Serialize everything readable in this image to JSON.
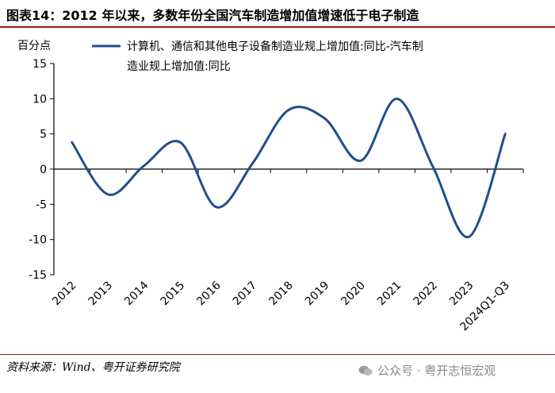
{
  "header": {
    "title": "图表14：2012 年以来，多数年份全国汽车制造增加值增速低于电子制造"
  },
  "footer": {
    "source": "资料来源：Wind、粤开证券研究院",
    "watermark": "公众号 · 粤开志恒宏观"
  },
  "colors": {
    "line": "#1f4e8c",
    "accent_rule": "#9b1c1c",
    "axis": "#000000"
  },
  "chart_data": {
    "type": "line",
    "title": "",
    "ylabel": "百分点",
    "xlabel": "",
    "ylim": [
      -15,
      15
    ],
    "yticks": [
      15,
      10,
      5,
      0,
      -5,
      -10,
      -15
    ],
    "categories": [
      "2012",
      "2013",
      "2014",
      "2015",
      "2016",
      "2017",
      "2018",
      "2019",
      "2020",
      "2021",
      "2022",
      "2023",
      "2024Q1-Q3"
    ],
    "series": [
      {
        "name": "计算机、通信和其他电子设备制造业规上增加值:同比-汽车制造业规上增加值:同比",
        "values": [
          3.8,
          -3.6,
          0.5,
          3.8,
          -5.4,
          0.8,
          8.4,
          7.2,
          1.2,
          10.0,
          0.3,
          -9.6,
          5.0
        ]
      }
    ],
    "legend": [
      "计算机、通信和其他电子设备制造业规上增加值:同比-汽车制",
      "造业规上增加值:同比"
    ]
  }
}
